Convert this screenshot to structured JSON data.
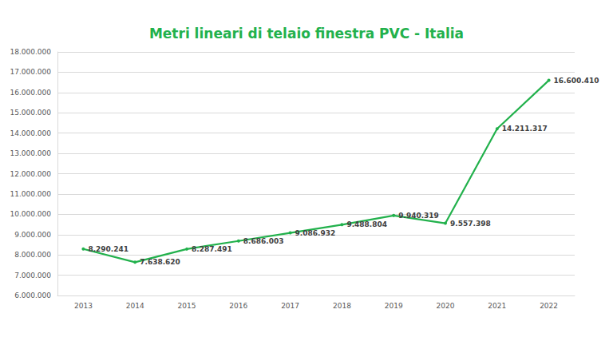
{
  "chart_data": {
    "type": "line",
    "title": "Metri lineari di telaio finestra PVC - Italia",
    "categories": [
      "2013",
      "2014",
      "2015",
      "2016",
      "2017",
      "2018",
      "2019",
      "2020",
      "2021",
      "2022"
    ],
    "values": [
      8290241,
      7638620,
      8287491,
      8686003,
      9086932,
      9488804,
      9940319,
      9557398,
      14211317,
      16600410
    ],
    "value_labels": [
      "8.290.241",
      "7.638.620",
      "8.287.491",
      "8.686.003",
      "9.086.932",
      "9.488.804",
      "9.940.319",
      "9.557.398",
      "14.211.317",
      "16.600.410"
    ],
    "color": "#22b14c",
    "ylim": [
      6000000,
      18000000
    ],
    "yticks": [
      {
        "value": 6000000,
        "label": "6.000.000"
      },
      {
        "value": 7000000,
        "label": "7.000.000"
      },
      {
        "value": 8000000,
        "label": "8.000.000"
      },
      {
        "value": 9000000,
        "label": "9.000.000"
      },
      {
        "value": 10000000,
        "label": "10.000.000"
      },
      {
        "value": 11000000,
        "label": "11.000.000"
      },
      {
        "value": 12000000,
        "label": "12.000.000"
      },
      {
        "value": 13000000,
        "label": "13.000.000"
      },
      {
        "value": 14000000,
        "label": "14.000.000"
      },
      {
        "value": 15000000,
        "label": "15.000.000"
      },
      {
        "value": 16000000,
        "label": "16.000.000"
      },
      {
        "value": 17000000,
        "label": "17.000.000"
      },
      {
        "value": 18000000,
        "label": "18.000.000"
      }
    ],
    "grid": true,
    "data_labels": true,
    "marker": "circle"
  }
}
